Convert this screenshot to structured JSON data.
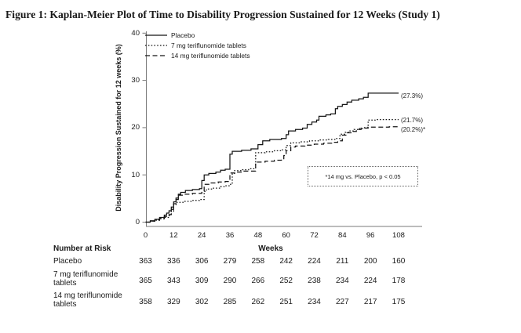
{
  "figure": {
    "title": "Figure 1: Kaplan-Meier Plot of Time to Disability Progression Sustained for 12 Weeks (Study 1)"
  },
  "colors": {
    "curve": "#151515",
    "axis": "#7a7a7a",
    "text": "#1a1a1a",
    "background": "#ffffff"
  },
  "chart_data": {
    "type": "line",
    "subtype": "kaplan-meier-step",
    "title": "",
    "xlabel": "Weeks",
    "ylabel": "Disability Progression Sustained for 12 weeks (%)",
    "xlim": [
      0,
      108
    ],
    "ylim": [
      0,
      40
    ],
    "x_ticks": [
      0,
      12,
      24,
      36,
      48,
      60,
      72,
      84,
      96,
      108
    ],
    "y_ticks": [
      0,
      10,
      20,
      30,
      40
    ],
    "grid": false,
    "legend_position": "inside-top-left",
    "annotation": "*14 mg vs. Placebo, p < 0.05",
    "series": [
      {
        "name": "Placebo",
        "line_style": "solid",
        "final_value": 27.3,
        "final_label": "(27.3%)",
        "points": [
          [
            0,
            0
          ],
          [
            2,
            0.3
          ],
          [
            4,
            0.6
          ],
          [
            6,
            1.0
          ],
          [
            8,
            1.5
          ],
          [
            9,
            1.9
          ],
          [
            10,
            2.4
          ],
          [
            11,
            3.2
          ],
          [
            12,
            4.3
          ],
          [
            13,
            5.1
          ],
          [
            14,
            5.9
          ],
          [
            15,
            6.3
          ],
          [
            17,
            6.7
          ],
          [
            20,
            6.9
          ],
          [
            23,
            7.1
          ],
          [
            24,
            8.8
          ],
          [
            25,
            10.0
          ],
          [
            27,
            10.3
          ],
          [
            30,
            10.6
          ],
          [
            32,
            11.0
          ],
          [
            34,
            11.2
          ],
          [
            36,
            14.4
          ],
          [
            37,
            15.0
          ],
          [
            41,
            15.2
          ],
          [
            45,
            15.5
          ],
          [
            48,
            16.4
          ],
          [
            50,
            17.2
          ],
          [
            53,
            17.5
          ],
          [
            58,
            17.7
          ],
          [
            60,
            18.5
          ],
          [
            61,
            19.3
          ],
          [
            64,
            19.6
          ],
          [
            67,
            19.9
          ],
          [
            69,
            20.7
          ],
          [
            71,
            21.2
          ],
          [
            73,
            21.6
          ],
          [
            74,
            22.4
          ],
          [
            77,
            22.7
          ],
          [
            79,
            22.9
          ],
          [
            81,
            24.0
          ],
          [
            82,
            24.5
          ],
          [
            84,
            24.9
          ],
          [
            86,
            25.4
          ],
          [
            88,
            25.8
          ],
          [
            91,
            26.1
          ],
          [
            93,
            26.4
          ],
          [
            95,
            27.3
          ],
          [
            108,
            27.3
          ]
        ]
      },
      {
        "name": "7 mg teriflunomide tablets",
        "line_style": "dotted",
        "final_value": 21.7,
        "final_label": "(21.7%)",
        "points": [
          [
            0,
            0
          ],
          [
            2,
            0.2
          ],
          [
            4,
            0.4
          ],
          [
            6,
            0.7
          ],
          [
            8,
            1.0
          ],
          [
            10,
            1.4
          ],
          [
            11,
            2.3
          ],
          [
            12,
            3.7
          ],
          [
            13,
            4.2
          ],
          [
            16,
            4.4
          ],
          [
            20,
            4.6
          ],
          [
            23,
            4.8
          ],
          [
            25,
            6.5
          ],
          [
            26,
            7.0
          ],
          [
            29,
            7.2
          ],
          [
            32,
            7.5
          ],
          [
            34,
            7.7
          ],
          [
            36,
            8.0
          ],
          [
            37,
            10.3
          ],
          [
            38,
            10.9
          ],
          [
            41,
            11.1
          ],
          [
            44,
            11.3
          ],
          [
            47,
            14.7
          ],
          [
            51,
            14.9
          ],
          [
            55,
            15.1
          ],
          [
            58,
            15.3
          ],
          [
            60,
            16.2
          ],
          [
            62,
            16.8
          ],
          [
            66,
            17.0
          ],
          [
            70,
            17.2
          ],
          [
            74,
            17.4
          ],
          [
            78,
            17.5
          ],
          [
            81,
            17.7
          ],
          [
            83,
            18.6
          ],
          [
            85,
            19.0
          ],
          [
            87,
            19.3
          ],
          [
            89,
            19.6
          ],
          [
            91,
            19.8
          ],
          [
            93,
            20.0
          ],
          [
            95,
            21.6
          ],
          [
            98,
            21.7
          ],
          [
            108,
            21.7
          ]
        ]
      },
      {
        "name": "14 mg teriflunomide tablets",
        "line_style": "dashed",
        "final_value": 20.2,
        "final_label": "(20.2%)*",
        "points": [
          [
            0,
            0
          ],
          [
            2,
            0.2
          ],
          [
            4,
            0.5
          ],
          [
            6,
            0.8
          ],
          [
            8,
            1.2
          ],
          [
            10,
            1.6
          ],
          [
            11,
            2.7
          ],
          [
            12,
            3.9
          ],
          [
            13,
            4.8
          ],
          [
            14,
            5.7
          ],
          [
            16,
            5.9
          ],
          [
            20,
            6.1
          ],
          [
            24,
            6.3
          ],
          [
            25,
            8.0
          ],
          [
            28,
            8.3
          ],
          [
            31,
            8.5
          ],
          [
            34,
            8.6
          ],
          [
            36,
            10.4
          ],
          [
            39,
            10.6
          ],
          [
            42,
            10.8
          ],
          [
            47,
            12.7
          ],
          [
            51,
            12.9
          ],
          [
            55,
            13.1
          ],
          [
            58,
            13.3
          ],
          [
            59,
            14.1
          ],
          [
            60,
            15.1
          ],
          [
            62,
            15.9
          ],
          [
            64,
            16.1
          ],
          [
            68,
            16.3
          ],
          [
            72,
            16.5
          ],
          [
            76,
            16.7
          ],
          [
            80,
            16.9
          ],
          [
            82,
            17.2
          ],
          [
            84,
            18.4
          ],
          [
            86,
            18.9
          ],
          [
            88,
            19.2
          ],
          [
            90,
            19.6
          ],
          [
            92,
            19.9
          ],
          [
            95,
            20.1
          ],
          [
            104,
            20.2
          ],
          [
            108,
            20.2
          ]
        ]
      }
    ]
  },
  "legend": {
    "items": [
      {
        "label": "Placebo",
        "style": "solid"
      },
      {
        "label": "7 mg teriflunomide tablets",
        "style": "dotted"
      },
      {
        "label": "14 mg teriflunomide tablets",
        "style": "dashed"
      }
    ]
  },
  "annotation_box": {
    "text": "*14 mg vs. Placebo, p < 0.05"
  },
  "risk_table": {
    "header": "Number at Risk",
    "x_axis_label": "Weeks",
    "weeks": [
      0,
      12,
      24,
      36,
      48,
      60,
      72,
      84,
      96,
      108
    ],
    "rows": [
      {
        "label_lines": [
          "Placebo"
        ],
        "values": [
          363,
          336,
          306,
          279,
          258,
          242,
          224,
          211,
          200,
          160
        ]
      },
      {
        "label_lines": [
          "7 mg teriflunomide",
          "tablets"
        ],
        "values": [
          365,
          343,
          309,
          290,
          266,
          252,
          238,
          234,
          224,
          178
        ]
      },
      {
        "label_lines": [
          "14 mg teriflunomide",
          "tablets"
        ],
        "values": [
          358,
          329,
          302,
          285,
          262,
          251,
          234,
          227,
          217,
          175
        ]
      }
    ]
  }
}
